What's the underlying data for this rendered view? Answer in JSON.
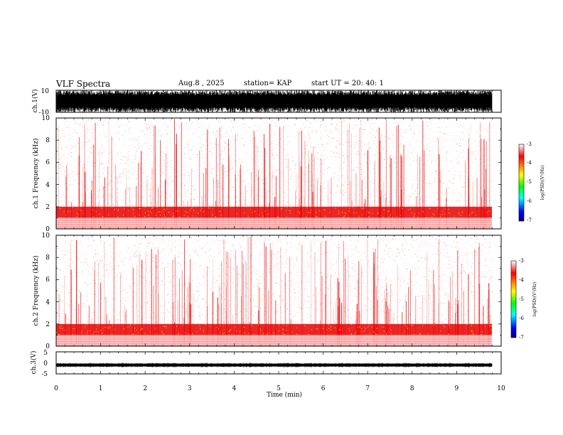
{
  "header": {
    "title": "VLF Spectra",
    "date": "Aug.8 , 2025",
    "station": "station= KAP",
    "start": "start UT = 20: 40: 1"
  },
  "colors": {
    "spec_background": "#ffffff",
    "spec_low": "#ffc8c8",
    "spec_mid": "#e80000",
    "spec_high": "#ffff00"
  },
  "chart_data": [
    {
      "type": "line",
      "name": "ch1-waveform",
      "ylabel": "ch.1(V)",
      "ylim": [
        -10,
        10
      ],
      "yticks": [
        "10",
        "-10"
      ],
      "xlim": [
        0,
        10
      ],
      "note": "dense waveform, saturating between -10 and 10 V"
    },
    {
      "type": "heatmap",
      "name": "ch1-spectrogram",
      "ylabel": "ch.1 Frequency (kHz)",
      "ylim": [
        0,
        10
      ],
      "yticks": [
        "0",
        "2",
        "4",
        "6",
        "8",
        "10"
      ],
      "xlim": [
        0,
        10
      ],
      "band_kHz": [
        1,
        2
      ],
      "colorbar": {
        "label": "log(PSD)(V²/Hz)",
        "range": [
          -7,
          -3
        ],
        "ticks": [
          "-3",
          "-4",
          "-5",
          "-6",
          "-7"
        ]
      }
    },
    {
      "type": "heatmap",
      "name": "ch2-spectrogram",
      "ylabel": "ch.2 Frequency (kHz)",
      "ylim": [
        0,
        10
      ],
      "yticks": [
        "0",
        "2",
        "4",
        "6",
        "8",
        "10"
      ],
      "xlim": [
        0,
        10
      ],
      "band_kHz": [
        1,
        2
      ],
      "colorbar": {
        "label": "log(PSD)(V²/Hz)",
        "range": [
          -7,
          -3
        ],
        "ticks": [
          "-3",
          "-4",
          "-5",
          "-6",
          "-7"
        ]
      }
    },
    {
      "type": "line",
      "name": "ch3-waveform",
      "ylabel": "ch.3(V)",
      "ylim": [
        -5,
        5
      ],
      "yticks": [
        "5",
        "0",
        "-5"
      ],
      "level": -1,
      "xlim": [
        0,
        10
      ]
    }
  ],
  "xaxis": {
    "label": "Time (min)",
    "ticks": [
      "0",
      "1",
      "2",
      "3",
      "4",
      "5",
      "6",
      "7",
      "8",
      "9",
      "10"
    ]
  }
}
